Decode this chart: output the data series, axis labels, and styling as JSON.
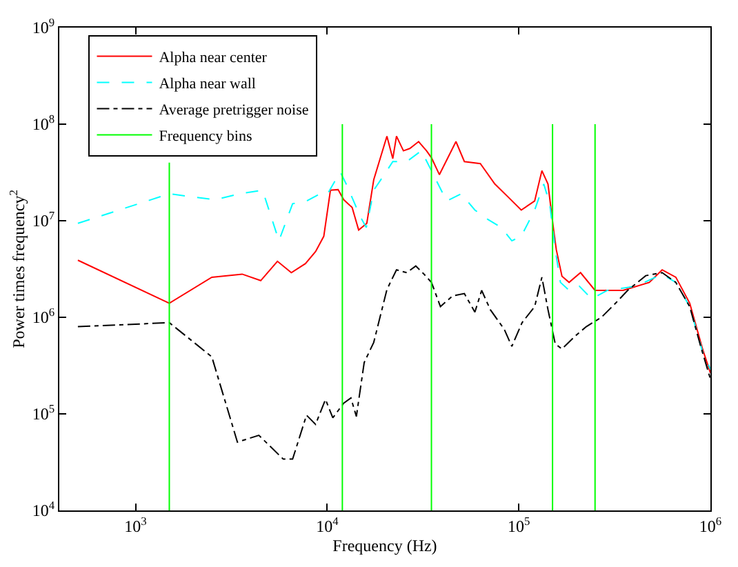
{
  "chart_data": {
    "type": "line",
    "xlabel": "Frequency (Hz)",
    "ylabel": "Power times frequency$^{2}$",
    "log": "xy",
    "legend": "top left",
    "xlim": [
      400,
      1000000
    ],
    "ylim": [
      10000,
      1000000000
    ],
    "xticks": [
      {
        "value": 1000,
        "label": "10$^{3}$"
      },
      {
        "value": 10000,
        "label": "10$^{4}$"
      },
      {
        "value": 100000,
        "label": "10$^{5}$"
      },
      {
        "value": 1000000,
        "label": "10$^{6}$"
      }
    ],
    "yticks": [
      {
        "value": 10000,
        "label": "10$^{4}$"
      },
      {
        "value": 100000,
        "label": "10$^{5}$"
      },
      {
        "value": 1000000,
        "label": "10$^{6}$"
      },
      {
        "value": 10000000,
        "label": "10$^{7}$"
      },
      {
        "value": 100000000,
        "label": "10$^{8}$"
      },
      {
        "value": 1000000000,
        "label": "10$^{9}$"
      }
    ],
    "series": [
      {
        "name": "Alpha near center",
        "color": "#ff0000",
        "line_style": "solid",
        "x": [
          500,
          1500,
          2500,
          3600,
          4500,
          5500,
          6500,
          7700,
          8700,
          9600,
          10400,
          11400,
          12200,
          13500,
          14600,
          16100,
          17500,
          20500,
          22000,
          23000,
          25000,
          27000,
          30000,
          33000,
          35000,
          38500,
          47000,
          52000,
          63000,
          75000,
          88000,
          103000,
          121000,
          132000,
          142000,
          152000,
          157000,
          168000,
          183000,
          210000,
          250000,
          350000,
          480000,
          560000,
          660000,
          780000,
          910000,
          1000000
        ],
        "values": [
          3900000,
          1400000,
          2600000,
          2800000,
          2400000,
          3800000,
          2900000,
          3600000,
          4800000,
          6900000,
          20700000,
          21000000,
          16500000,
          13700000,
          8000000,
          9400000,
          26600000,
          75000000,
          44000000,
          75000000,
          53000000,
          56000000,
          66000000,
          53000000,
          45000000,
          30000000,
          66000000,
          41000000,
          39000000,
          24000000,
          17600000,
          12900000,
          16000000,
          33000000,
          24000000,
          8000000,
          5000000,
          2660000,
          2300000,
          2900000,
          1900000,
          1900000,
          2300000,
          3100000,
          2600000,
          1400000,
          470000,
          265000
        ]
      },
      {
        "name": "Alpha near wall",
        "color": "#00ffff",
        "line_style": "dashed",
        "x": [
          500,
          1500,
          2600,
          3500,
          4600,
          5600,
          6600,
          7800,
          9200,
          10000,
          11700,
          12700,
          14900,
          16000,
          17500,
          20500,
          22000,
          26000,
          31000,
          35000,
          42000,
          50000,
          59000,
          69000,
          81000,
          92000,
          103000,
          121000,
          135000,
          145000,
          155000,
          165000,
          183000,
          207000,
          240000,
          290000,
          410000,
          560000,
          660000,
          780000,
          910000,
          1000000
        ],
        "values": [
          9400000,
          19000000,
          16500000,
          19000000,
          20700000,
          6200000,
          15000000,
          16000000,
          19000000,
          18700000,
          32000000,
          23000000,
          11000000,
          8500000,
          20700000,
          33000000,
          41000000,
          41000000,
          53000000,
          33000000,
          16000000,
          19000000,
          12900000,
          10300000,
          8500000,
          6200000,
          6900000,
          12900000,
          24000000,
          15000000,
          5000000,
          2300000,
          1900000,
          2100000,
          1550000,
          1900000,
          2100000,
          2800000,
          2300000,
          1290000,
          440000,
          290000
        ]
      },
      {
        "name": "Average pretrigger noise",
        "color": "#000000",
        "line_style": "dashdot",
        "x": [
          500,
          1500,
          2500,
          3400,
          4400,
          5900,
          6600,
          7800,
          8700,
          9800,
          10700,
          12200,
          13300,
          14200,
          15600,
          17500,
          20500,
          23000,
          26000,
          29000,
          32000,
          35000,
          39000,
          45000,
          52000,
          59000,
          64000,
          71000,
          84000,
          92000,
          104000,
          121000,
          132000,
          142000,
          155000,
          168000,
          197000,
          225000,
          270000,
          320000,
          370000,
          460000,
          560000,
          660000,
          780000,
          890000,
          1000000
        ],
        "values": [
          800000,
          880000,
          390000,
          51000,
          60000,
          34000,
          34000,
          97000,
          78000,
          141000,
          91000,
          129000,
          146000,
          94000,
          340000,
          550000,
          1940000,
          3100000,
          2900000,
          3400000,
          2800000,
          2300000,
          1290000,
          1660000,
          1760000,
          1130000,
          1900000,
          1200000,
          750000,
          500000,
          880000,
          1290000,
          2600000,
          1200000,
          530000,
          470000,
          640000,
          800000,
          1000000,
          1400000,
          1900000,
          2700000,
          2900000,
          2300000,
          1290000,
          500000,
          230000
        ]
      },
      {
        "name": "Frequency bins",
        "color": "#00ff00",
        "line_style": "solid",
        "x": [
          1500,
          1500,
          null,
          12000,
          12000,
          null,
          35000,
          35000,
          null,
          150000,
          150000,
          null,
          250000,
          250000
        ],
        "values": [
          10000,
          40000000,
          null,
          10000,
          100000000,
          null,
          10000,
          100000000,
          null,
          10000,
          100000000,
          null,
          10000,
          100000000
        ]
      }
    ]
  }
}
